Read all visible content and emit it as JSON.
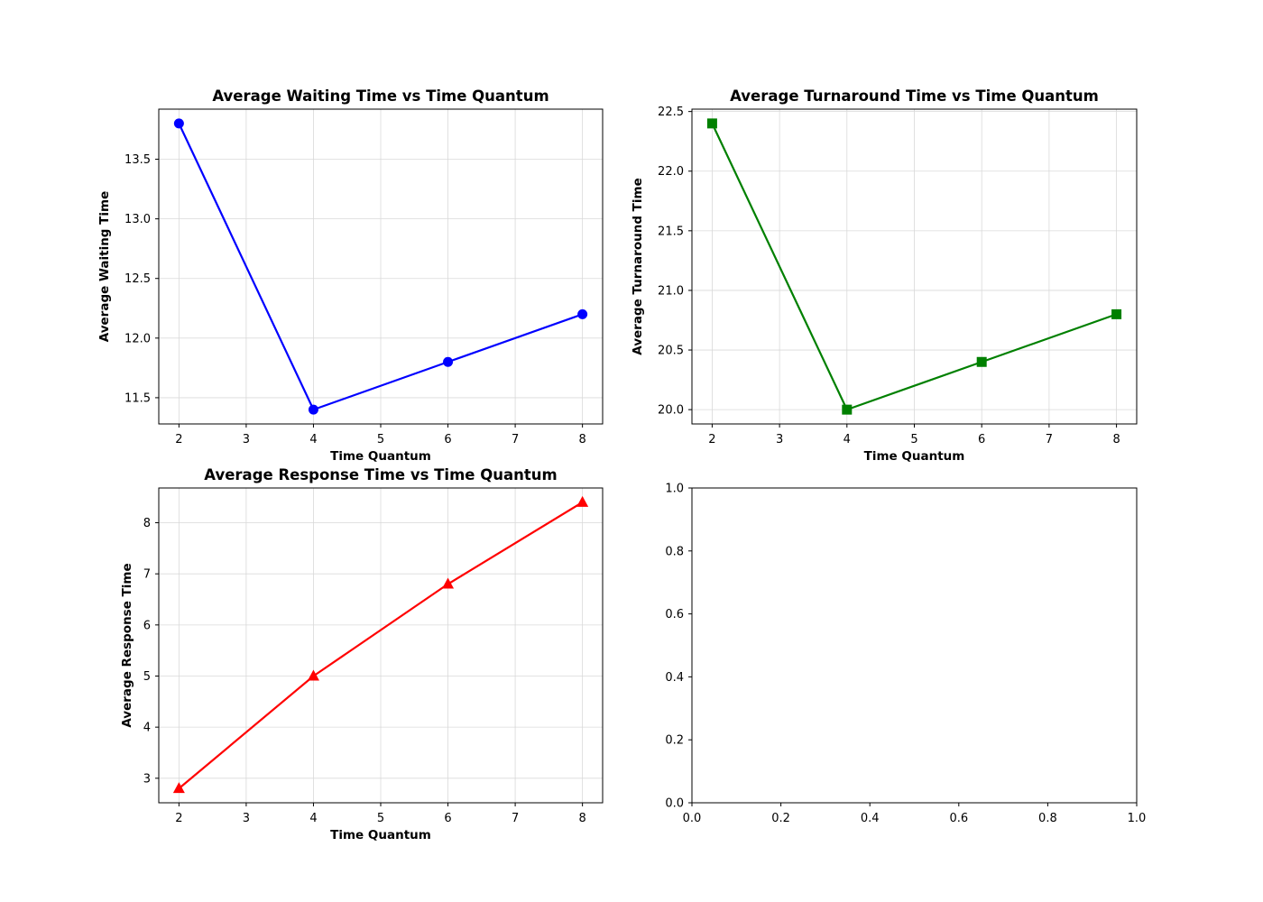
{
  "figure": {
    "chart_data": [
      {
        "type": "line",
        "title": "Average Waiting Time vs Time Quantum",
        "xlabel": "Time Quantum",
        "ylabel": "Average Waiting Time",
        "x": [
          2,
          4,
          6,
          8
        ],
        "series": [
          {
            "values": [
              13.8,
              11.4,
              11.8,
              12.2
            ],
            "color": "#0000ff",
            "marker": "circle"
          }
        ],
        "xlim": [
          1.7,
          8.3
        ],
        "ylim": [
          11.28,
          13.92
        ],
        "xticks": [
          2,
          3,
          4,
          5,
          6,
          7,
          8
        ],
        "yticks": [
          11.5,
          12.0,
          12.5,
          13.0,
          13.5
        ],
        "ytick_labels": [
          "11.5",
          "12.0",
          "12.5",
          "13.0",
          "13.5"
        ],
        "grid": true
      },
      {
        "type": "line",
        "title": "Average Turnaround Time vs Time Quantum",
        "xlabel": "Time Quantum",
        "ylabel": "Average Turnaround Time",
        "x": [
          2,
          4,
          6,
          8
        ],
        "series": [
          {
            "values": [
              22.4,
              20.0,
              20.4,
              20.8
            ],
            "color": "#008000",
            "marker": "square"
          }
        ],
        "xlim": [
          1.7,
          8.3
        ],
        "ylim": [
          19.88,
          22.52
        ],
        "xticks": [
          2,
          3,
          4,
          5,
          6,
          7,
          8
        ],
        "yticks": [
          20.0,
          20.5,
          21.0,
          21.5,
          22.0,
          22.5
        ],
        "ytick_labels": [
          "20.0",
          "20.5",
          "21.0",
          "21.5",
          "22.0",
          "22.5"
        ],
        "grid": true
      },
      {
        "type": "line",
        "title": "Average Response Time vs Time Quantum",
        "xlabel": "Time Quantum",
        "ylabel": "Average Response Time",
        "x": [
          2,
          4,
          6,
          8
        ],
        "series": [
          {
            "values": [
              2.8,
              5.0,
              6.8,
              8.4
            ],
            "color": "#ff0000",
            "marker": "triangle"
          }
        ],
        "xlim": [
          1.7,
          8.3
        ],
        "ylim": [
          2.52,
          8.68
        ],
        "xticks": [
          2,
          3,
          4,
          5,
          6,
          7,
          8
        ],
        "yticks": [
          3,
          4,
          5,
          6,
          7,
          8
        ],
        "ytick_labels": [
          "3",
          "4",
          "5",
          "6",
          "7",
          "8"
        ],
        "grid": true
      },
      {
        "type": "line",
        "title": "",
        "xlabel": "",
        "ylabel": "",
        "x": [],
        "series": [],
        "xlim": [
          0.0,
          1.0
        ],
        "ylim": [
          0.0,
          1.0
        ],
        "xticks": [
          0.0,
          0.2,
          0.4,
          0.6,
          0.8,
          1.0
        ],
        "xtick_labels": [
          "0.0",
          "0.2",
          "0.4",
          "0.6",
          "0.8",
          "1.0"
        ],
        "yticks": [
          0.0,
          0.2,
          0.4,
          0.6,
          0.8,
          1.0
        ],
        "ytick_labels": [
          "0.0",
          "0.2",
          "0.4",
          "0.6",
          "0.8",
          "1.0"
        ],
        "grid": false
      }
    ]
  }
}
